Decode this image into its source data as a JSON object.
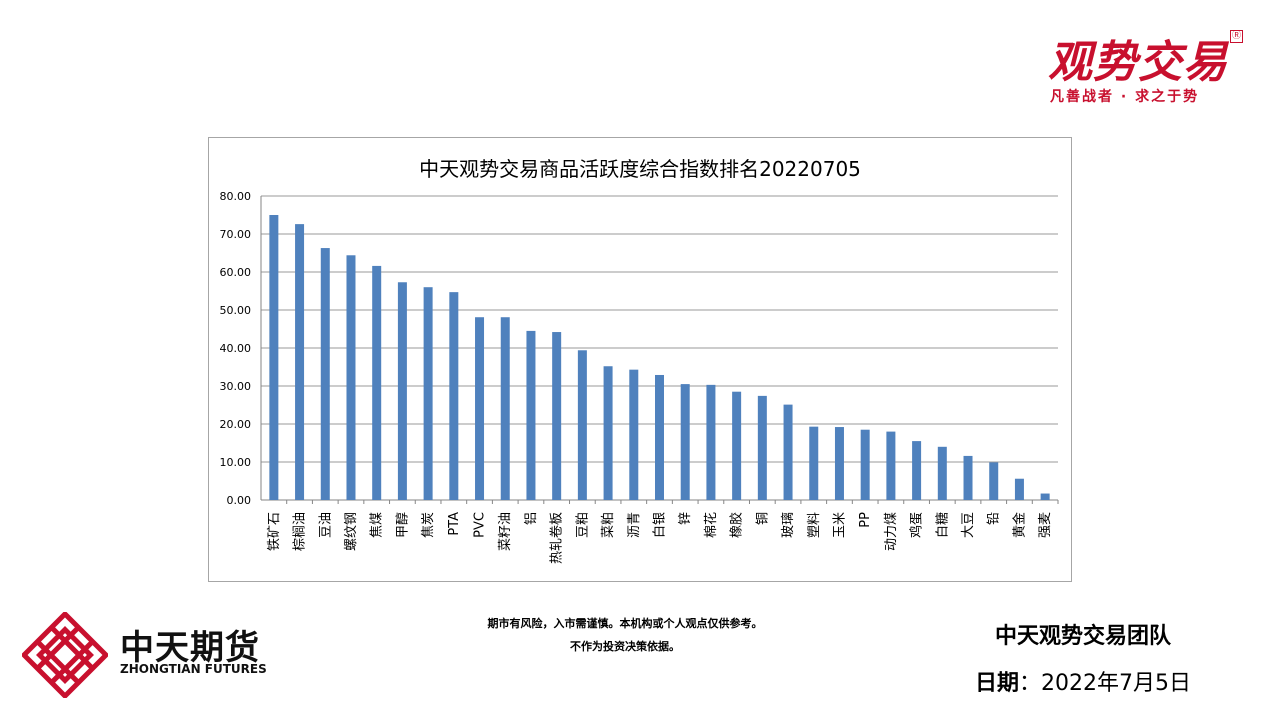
{
  "brand": {
    "title": "观势交易",
    "reg_mark": "Ⓡ",
    "slogan": "凡善战者 · 求之于势"
  },
  "company": {
    "name_cn": "中天期货",
    "name_en": "ZHONGTIAN FUTURES",
    "logo_icon": "zhongtian-lattice-logo",
    "logo_color": "#c8102e"
  },
  "footer": {
    "disclaimer_line1": "期市有风险，入市需谨慎。本机构或个人观点仅供参考。",
    "disclaimer_line2": "不作为投资决策依据。",
    "team": "中天观势交易团队",
    "date_label": "日期",
    "date_sep": "：",
    "date_value": "2022年7月5日"
  },
  "chart_data": {
    "type": "bar",
    "title": "中天观势交易商品活跃度综合指数排名20220705",
    "xlabel": "",
    "ylabel": "",
    "ylim": [
      0,
      80
    ],
    "yticks": [
      "0.00",
      "10.00",
      "20.00",
      "30.00",
      "40.00",
      "50.00",
      "60.00",
      "70.00",
      "80.00"
    ],
    "grid": true,
    "legend": "none",
    "bar_color": "#4f81bd",
    "categories": [
      "铁矿石",
      "棕榈油",
      "豆油",
      "螺纹钢",
      "焦煤",
      "甲醇",
      "焦炭",
      "PTA",
      "PVC",
      "菜籽油",
      "铝",
      "热轧卷板",
      "豆粕",
      "菜粕",
      "沥青",
      "白银",
      "锌",
      "棉花",
      "橡胶",
      "铜",
      "玻璃",
      "塑料",
      "玉米",
      "PP",
      "动力煤",
      "鸡蛋",
      "白糖",
      "大豆",
      "铅",
      "黄金",
      "强麦"
    ],
    "values": [
      75.0,
      72.6,
      66.3,
      64.4,
      61.6,
      57.3,
      56.0,
      54.7,
      48.1,
      48.1,
      44.5,
      44.2,
      39.4,
      35.2,
      34.3,
      32.9,
      30.5,
      30.3,
      28.5,
      27.4,
      25.1,
      19.3,
      19.2,
      18.5,
      18.0,
      15.5,
      14.0,
      11.6,
      9.9,
      5.6,
      1.7
    ]
  }
}
